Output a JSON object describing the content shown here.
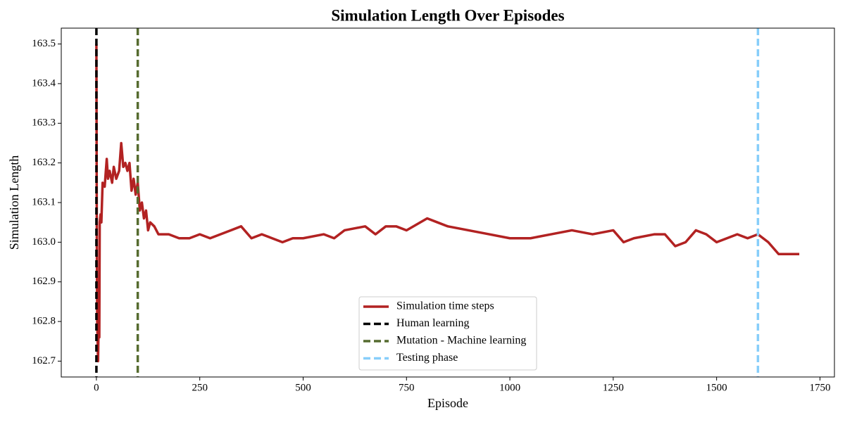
{
  "chart_data": {
    "type": "line",
    "title": "Simulation Length Over Episodes",
    "xlabel": "Episode",
    "ylabel": "Simulation Length",
    "x": [
      0,
      1,
      2,
      4,
      5,
      7,
      8,
      10,
      12,
      15,
      20,
      25,
      28,
      32,
      38,
      42,
      48,
      55,
      60,
      65,
      70,
      75,
      80,
      85,
      90,
      95,
      100,
      105,
      110,
      115,
      120,
      125,
      130,
      140,
      150,
      175,
      200,
      225,
      250,
      275,
      300,
      325,
      350,
      375,
      400,
      425,
      450,
      475,
      500,
      550,
      575,
      600,
      650,
      675,
      700,
      725,
      750,
      800,
      825,
      850,
      900,
      950,
      1000,
      1050,
      1100,
      1150,
      1200,
      1250,
      1275,
      1300,
      1350,
      1375,
      1400,
      1425,
      1450,
      1475,
      1500,
      1550,
      1575,
      1600,
      1625,
      1650,
      1700
    ],
    "series": [
      {
        "name": "Simulation time steps",
        "color": "#b22222",
        "values": [
          163.5,
          163.0,
          162.8,
          162.7,
          162.77,
          162.76,
          163.05,
          163.07,
          163.05,
          163.15,
          163.14,
          163.21,
          163.16,
          163.18,
          163.15,
          163.19,
          163.16,
          163.18,
          163.25,
          163.19,
          163.2,
          163.18,
          163.2,
          163.13,
          163.16,
          163.12,
          163.15,
          163.08,
          163.1,
          163.06,
          163.08,
          163.03,
          163.05,
          163.04,
          163.02,
          163.02,
          163.01,
          163.01,
          163.02,
          163.01,
          163.02,
          163.03,
          163.04,
          163.01,
          163.02,
          163.01,
          163.0,
          163.01,
          163.01,
          163.02,
          163.01,
          163.03,
          163.04,
          163.02,
          163.04,
          163.04,
          163.03,
          163.06,
          163.05,
          163.04,
          163.03,
          163.02,
          163.01,
          163.01,
          163.02,
          163.03,
          163.02,
          163.03,
          163.0,
          163.01,
          163.02,
          163.02,
          162.99,
          163.0,
          163.03,
          163.02,
          163.0,
          163.02,
          163.01,
          163.02,
          163.0,
          162.97,
          162.97
        ]
      }
    ],
    "vlines": [
      {
        "name": "Human learning",
        "x": 0,
        "color": "#000000"
      },
      {
        "name": "Mutation - Machine learning",
        "x": 100,
        "color": "#556b2f"
      },
      {
        "name": "Testing phase",
        "x": 1600,
        "color": "#87cefa"
      }
    ],
    "xlim": [
      -85,
      1785
    ],
    "ylim": [
      162.66,
      163.54
    ],
    "xticks": [
      0,
      250,
      500,
      750,
      1000,
      1250,
      1500,
      1750
    ],
    "yticks": [
      162.7,
      162.8,
      162.9,
      {
        "value": 163.0,
        "label": "163.0"
      },
      163.1,
      163.2,
      163.3,
      163.4,
      163.5
    ],
    "legend": "lower center"
  }
}
